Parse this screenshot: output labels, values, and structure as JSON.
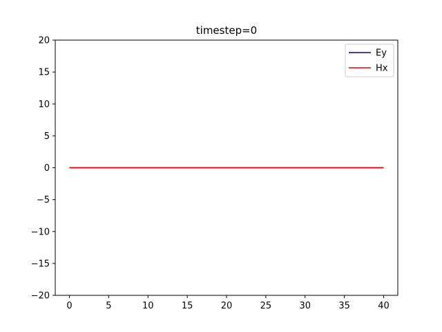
{
  "chart_data": {
    "type": "line",
    "title": "timestep=0",
    "xlabel": "",
    "ylabel": "",
    "xlim": [
      -1.8,
      41.8
    ],
    "ylim": [
      -20,
      20
    ],
    "xticks": [
      0,
      5,
      10,
      15,
      20,
      25,
      30,
      35,
      40
    ],
    "yticks": [
      -20,
      -15,
      -10,
      -5,
      0,
      5,
      10,
      15,
      20
    ],
    "ytick_labels": [
      "−20",
      "−15",
      "−10",
      "−5",
      "0",
      "5",
      "10",
      "15",
      "20"
    ],
    "grid": false,
    "legend_position": "top-right",
    "x": [
      0,
      40
    ],
    "series": [
      {
        "name": "Ey",
        "color": "#0000aa",
        "values": [
          0,
          0
        ]
      },
      {
        "name": "Hx",
        "color": "#ee0000",
        "values": [
          0,
          0
        ]
      }
    ]
  }
}
